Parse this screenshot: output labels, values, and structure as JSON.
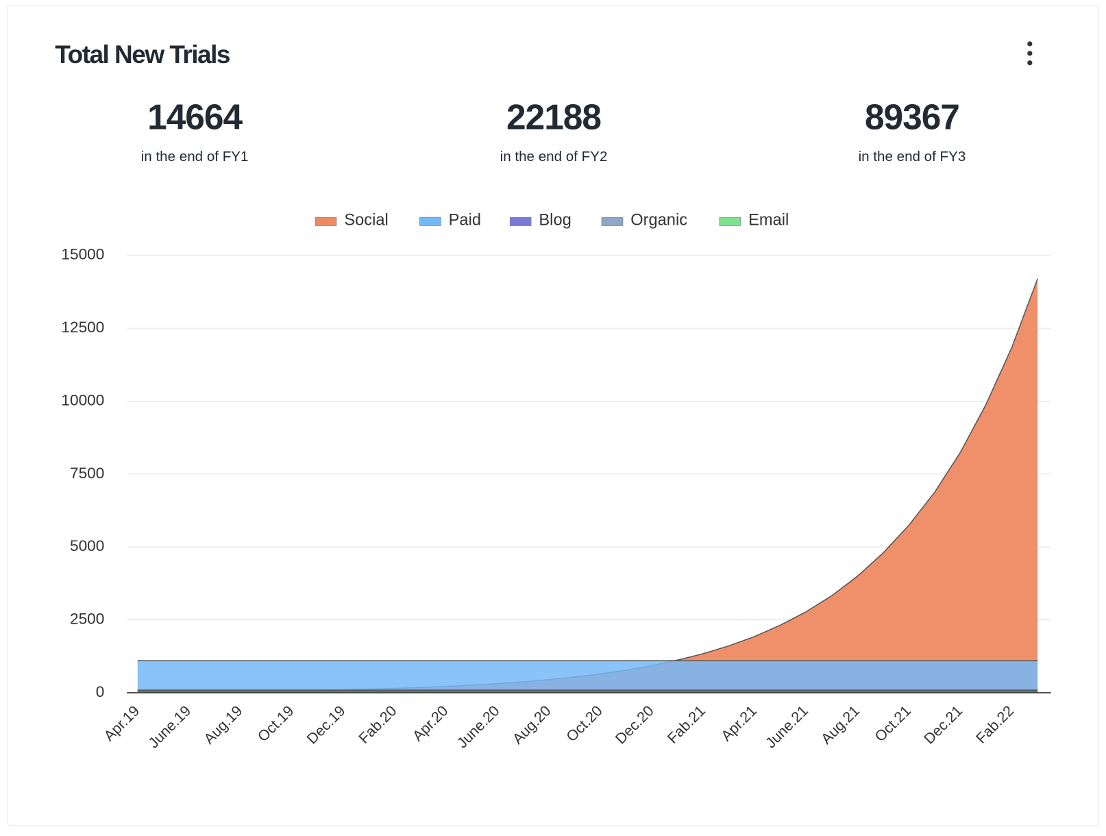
{
  "chart_data": {
    "type": "area",
    "title": "Total New Trials",
    "stats": [
      {
        "value": "14664",
        "label": "in the end of FY1"
      },
      {
        "value": "22188",
        "label": "in the end of FY2"
      },
      {
        "value": "89367",
        "label": "in the end of FY3"
      }
    ],
    "categories": [
      "Apr.19",
      null,
      "June.19",
      null,
      "Aug.19",
      null,
      "Oct.19",
      null,
      "Dec.19",
      null,
      "Fab.20",
      null,
      "Apr.20",
      null,
      "June.20",
      null,
      "Aug.20",
      null,
      "Oct.20",
      null,
      "Dec.20",
      null,
      "Fab.21",
      null,
      "Apr.21",
      null,
      "June.21",
      null,
      "Aug.21",
      null,
      "Oct.21",
      null,
      "Dec.21",
      null,
      "Fab.22",
      null
    ],
    "series": [
      {
        "name": "Social",
        "color": "#ee8a63",
        "values": [
          24,
          29,
          35,
          42,
          50,
          60,
          72,
          87,
          104,
          125,
          150,
          180,
          216,
          260,
          312,
          374,
          449,
          538,
          646,
          775,
          930,
          1120,
          1340,
          1610,
          1930,
          2320,
          2780,
          3330,
          4000,
          4800,
          5750,
          6880,
          8250,
          9900,
          11850,
          14200
        ]
      },
      {
        "name": "Paid",
        "color": "#74b9f7",
        "values": [
          1100,
          1100,
          1100,
          1100,
          1100,
          1100,
          1100,
          1100,
          1100,
          1100,
          1100,
          1100,
          1100,
          1100,
          1100,
          1100,
          1100,
          1100,
          1100,
          1100,
          1100,
          1100,
          1100,
          1100,
          1100,
          1100,
          1100,
          1100,
          1100,
          1100,
          1100,
          1100,
          1100,
          1100,
          1100,
          1100
        ]
      },
      {
        "name": "Blog",
        "color": "#7a7ad6",
        "values": [
          70,
          70,
          70,
          70,
          70,
          70,
          70,
          70,
          70,
          70,
          70,
          70,
          70,
          70,
          70,
          70,
          70,
          70,
          70,
          70,
          70,
          70,
          70,
          70,
          70,
          70,
          70,
          70,
          70,
          70,
          70,
          70,
          70,
          70,
          70,
          70
        ]
      },
      {
        "name": "Organic",
        "color": "#8fa6c9",
        "values": [
          90,
          90,
          90,
          90,
          90,
          90,
          90,
          90,
          90,
          90,
          90,
          90,
          90,
          90,
          90,
          90,
          90,
          90,
          90,
          90,
          90,
          90,
          90,
          90,
          90,
          90,
          90,
          90,
          90,
          90,
          90,
          90,
          90,
          90,
          90,
          90
        ]
      },
      {
        "name": "Email",
        "color": "#7fe28f",
        "values": [
          50,
          50,
          50,
          50,
          50,
          50,
          50,
          50,
          50,
          50,
          50,
          50,
          50,
          50,
          50,
          50,
          50,
          50,
          50,
          50,
          50,
          50,
          50,
          50,
          50,
          50,
          50,
          50,
          50,
          50,
          50,
          50,
          50,
          50,
          50,
          50
        ]
      }
    ],
    "ylim": [
      0,
      15000
    ],
    "yticks": [
      0,
      2500,
      5000,
      7500,
      10000,
      12500,
      15000
    ],
    "grid": true,
    "legend": "top"
  }
}
